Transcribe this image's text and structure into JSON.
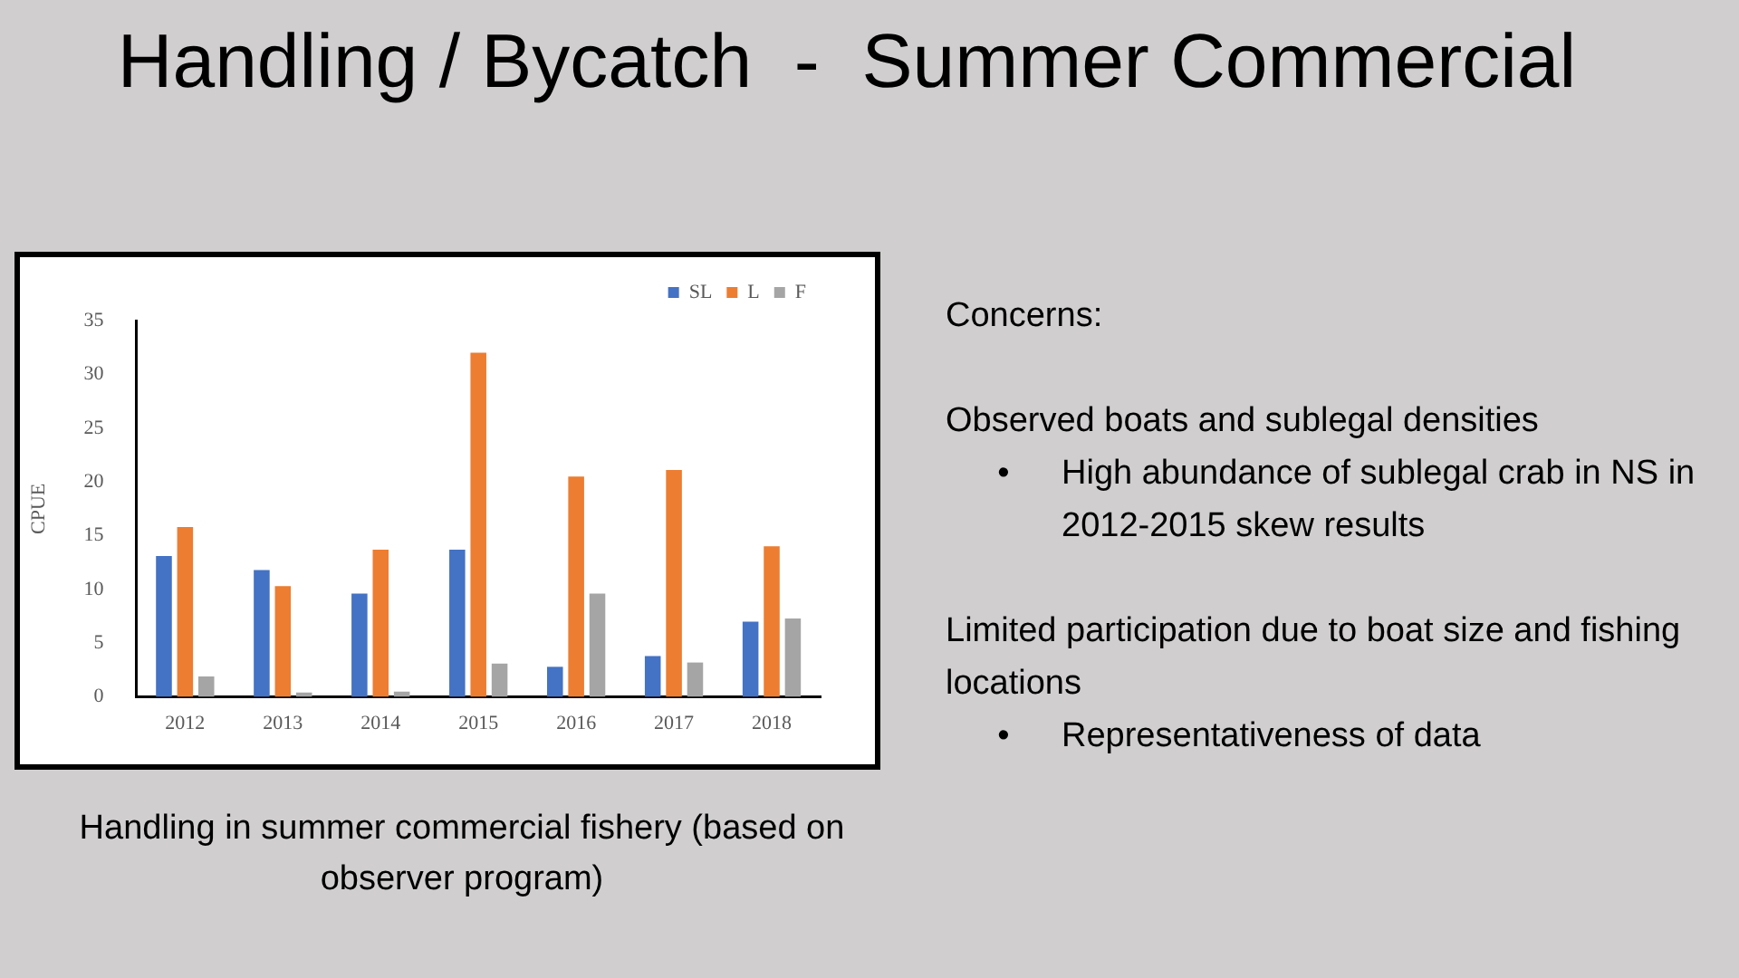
{
  "chart_data": {
    "type": "bar",
    "title": "Handling / Bycatch  -  Summer Commercial",
    "ylabel": "CPUE",
    "categories": [
      "2012",
      "2013",
      "2014",
      "2015",
      "2016",
      "2017",
      "2018"
    ],
    "series": [
      {
        "name": "SL",
        "color": "#4472c4",
        "values": [
          13.1,
          11.8,
          9.6,
          13.7,
          2.8,
          3.8,
          7.0
        ]
      },
      {
        "name": "L",
        "color": "#ed7d31",
        "values": [
          15.8,
          10.3,
          13.7,
          32,
          20.5,
          21.1,
          14.0
        ]
      },
      {
        "name": "F",
        "color": "#a5a5a5",
        "values": [
          1.9,
          0.4,
          0.5,
          3.1,
          9.6,
          3.2,
          7.3
        ]
      }
    ],
    "ylim": [
      0,
      35
    ],
    "yticks": [
      0,
      5,
      10,
      15,
      20,
      25,
      30,
      35
    ],
    "grid": false,
    "legend": "top right",
    "annotations": [
      "Handling in summer commercial fishery (based on observer program)",
      "Concerns:",
      "Observed boats and sublegal densities",
      "• High abundance of sublegal crab in NS in 2012-2015 skew results",
      "Limited participation due to boat size and fishing locations",
      "• Representativeness of data"
    ]
  }
}
